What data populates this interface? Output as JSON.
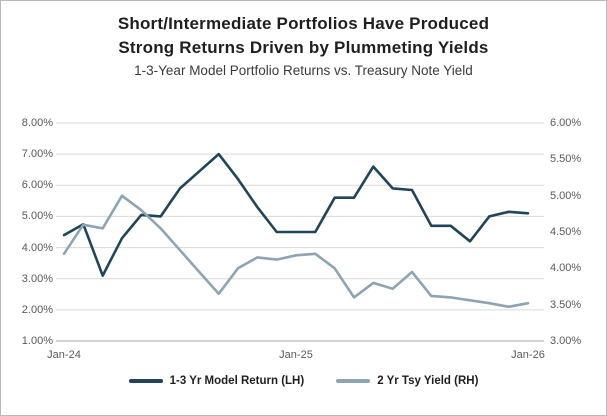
{
  "chart_data": {
    "type": "line",
    "title": "Short/Intermediate Portfolios Have Produced Strong Returns Driven by Plummeting Yields",
    "title_lines": [
      "Short/Intermediate Portfolios Have Produced",
      "Strong Returns Driven by Plummeting Yields"
    ],
    "subtitle": "1-3-Year Model Portfolio Returns vs. Treasury Note Yield",
    "x": [
      "Jan-24",
      "Feb-24",
      "Mar-24",
      "Apr-24",
      "May-24",
      "Jun-24",
      "Jul-24",
      "Aug-24",
      "Sep-24",
      "Oct-24",
      "Nov-24",
      "Dec-24",
      "Jan-25",
      "Feb-25",
      "Mar-25",
      "Apr-25",
      "May-25",
      "Jun-25",
      "Jul-25",
      "Aug-25",
      "Sep-25",
      "Oct-25",
      "Nov-25",
      "Dec-25",
      "Jan-26"
    ],
    "x_tick_labels": [
      "Jan-24",
      "Jan-25",
      "Jan-26"
    ],
    "x_tick_positions": [
      0,
      12,
      24
    ],
    "left_axis": {
      "min": 1.0,
      "max": 8.0,
      "step": 1.0,
      "tick_labels_top_to_bottom": [
        "8.00%",
        "7.00%",
        "6.00%",
        "5.00%",
        "4.00%",
        "3.00%",
        "2.00%",
        "1.00%"
      ]
    },
    "right_axis": {
      "min": 3.0,
      "max": 6.0,
      "step": 0.5,
      "tick_labels_top_to_bottom": [
        "6.00%",
        "5.50%",
        "5.00%",
        "4.50%",
        "4.00%",
        "3.50%",
        "3.00%"
      ]
    },
    "grid": "horizontal",
    "legend_position": "bottom",
    "colors": {
      "gridline": "#d9d9d9",
      "axis_line": "#a6a6a6",
      "tick_text": "#595959"
    },
    "series": [
      {
        "name": "1-3 Yr Model Return (LH)",
        "axis": "left",
        "color": "#20455a",
        "values": [
          4.4,
          4.75,
          3.1,
          4.3,
          5.05,
          5.0,
          5.9,
          6.45,
          7.0,
          6.2,
          5.3,
          4.5,
          4.5,
          4.5,
          5.6,
          5.6,
          6.6,
          5.9,
          5.85,
          4.7,
          4.7,
          4.2,
          5.0,
          5.15,
          5.1
        ]
      },
      {
        "name": "2 Yr Tsy Yield (RH)",
        "axis": "right",
        "color": "#8da4b3",
        "values": [
          4.2,
          4.6,
          4.55,
          5.0,
          4.8,
          4.55,
          4.25,
          3.95,
          3.65,
          4.0,
          4.15,
          4.12,
          4.18,
          4.2,
          4.0,
          3.6,
          3.8,
          3.72,
          3.95,
          3.62,
          3.6,
          3.56,
          3.52,
          3.47,
          3.52
        ]
      }
    ]
  }
}
